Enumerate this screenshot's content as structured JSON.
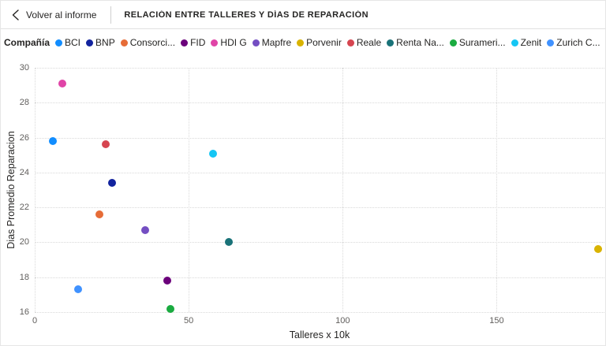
{
  "topbar": {
    "back_label": "Volver al informe",
    "title": "RELACIÓN ENTRE TALLERES Y DÍAS DE REPARACIÓN"
  },
  "legend": {
    "label": "Compañía",
    "items": [
      {
        "label": "BCI",
        "color": "#118DFF"
      },
      {
        "label": "BNP",
        "color": "#12239E"
      },
      {
        "label": "Consorci...",
        "color": "#E66C37"
      },
      {
        "label": "FID",
        "color": "#6B007B"
      },
      {
        "label": "HDI G",
        "color": "#E044A7"
      },
      {
        "label": "Mapfre",
        "color": "#744EC2"
      },
      {
        "label": "Porvenir",
        "color": "#D9B300"
      },
      {
        "label": "Reale",
        "color": "#D64550"
      },
      {
        "label": "Renta Na...",
        "color": "#197278"
      },
      {
        "label": "Surameri...",
        "color": "#1AAB40"
      },
      {
        "label": "Zenit",
        "color": "#15C6F4"
      },
      {
        "label": "Zurich C...",
        "color": "#4092FF"
      }
    ]
  },
  "chart_data": {
    "type": "scatter",
    "title": "RELACIÓN ENTRE TALLERES Y DÍAS DE REPARACIÓN",
    "xlabel": "Talleres x 10k",
    "ylabel": "Dias Promedio Reparacion",
    "xlim": [
      0,
      185
    ],
    "ylim": [
      16,
      30
    ],
    "x_ticks": [
      0,
      50,
      100,
      150
    ],
    "y_ticks": [
      16,
      18,
      20,
      22,
      24,
      26,
      28,
      30
    ],
    "grid": true,
    "legend_position": "top",
    "points": [
      {
        "name": "BCI",
        "color": "#118DFF",
        "x": 6,
        "y": 25.8
      },
      {
        "name": "BNP",
        "color": "#12239E",
        "x": 25,
        "y": 23.4
      },
      {
        "name": "Consorci...",
        "color": "#E66C37",
        "x": 21,
        "y": 21.6
      },
      {
        "name": "FID",
        "color": "#6B007B",
        "x": 43,
        "y": 17.8
      },
      {
        "name": "HDI G",
        "color": "#E044A7",
        "x": 9,
        "y": 29.1
      },
      {
        "name": "Mapfre",
        "color": "#744EC2",
        "x": 36,
        "y": 20.7
      },
      {
        "name": "Porvenir",
        "color": "#D9B300",
        "x": 183,
        "y": 19.6
      },
      {
        "name": "Reale",
        "color": "#D64550",
        "x": 23,
        "y": 25.6
      },
      {
        "name": "Renta Na...",
        "color": "#197278",
        "x": 63,
        "y": 20.0
      },
      {
        "name": "Surameri...",
        "color": "#1AAB40",
        "x": 44,
        "y": 16.2
      },
      {
        "name": "Zenit",
        "color": "#15C6F4",
        "x": 58,
        "y": 25.1
      },
      {
        "name": "Zurich C...",
        "color": "#4092FF",
        "x": 14,
        "y": 17.3
      }
    ]
  }
}
